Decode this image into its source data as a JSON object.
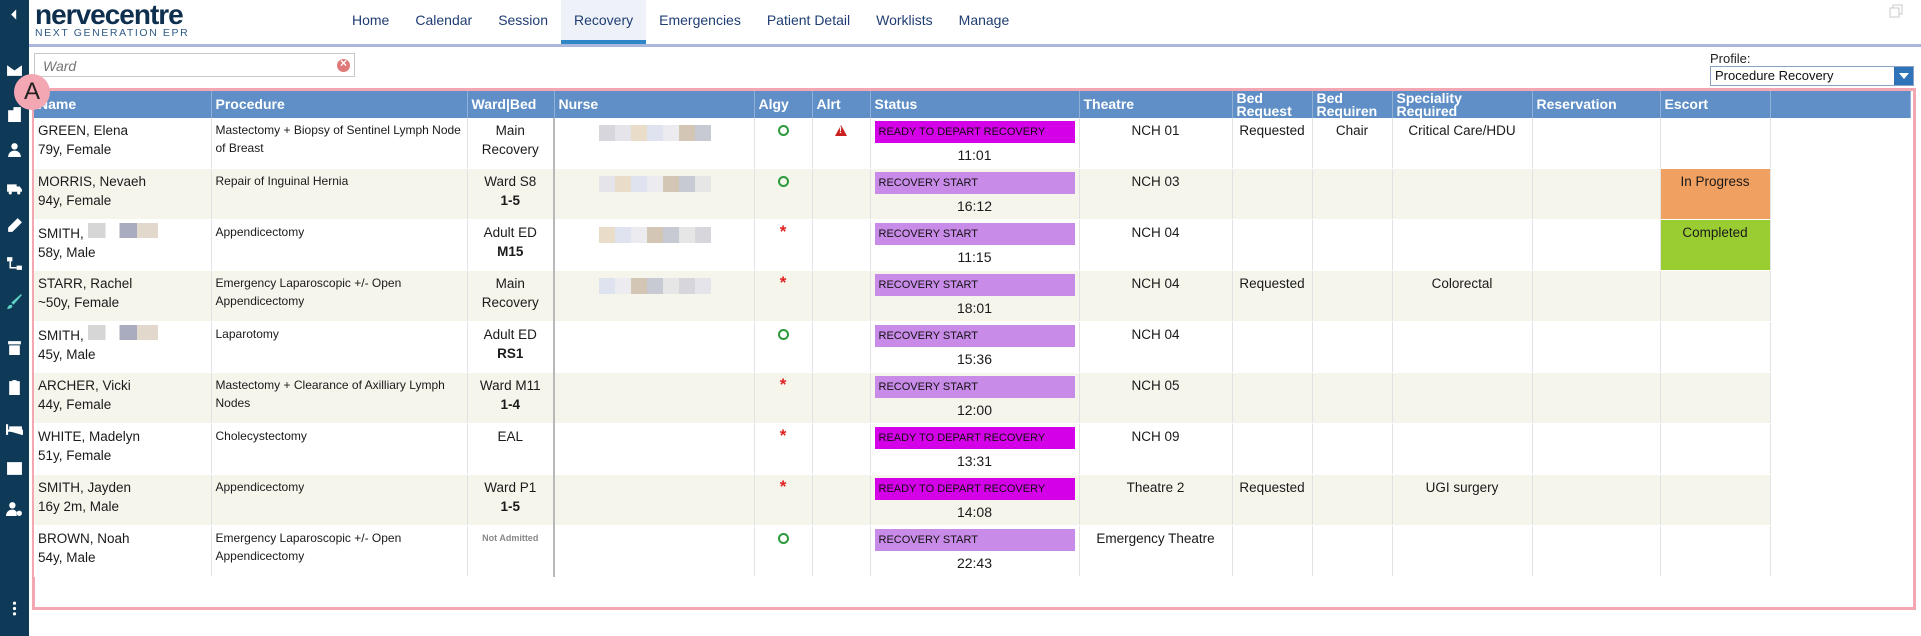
{
  "app": {
    "logo_name": "nervecentre",
    "logo_sub": "NEXT GENERATION EPR"
  },
  "nav": {
    "tabs": [
      {
        "label": "Home",
        "active": false
      },
      {
        "label": "Calendar",
        "active": false
      },
      {
        "label": "Session",
        "active": false
      },
      {
        "label": "Recovery",
        "active": true
      },
      {
        "label": "Emergencies",
        "active": false
      },
      {
        "label": "Patient Detail",
        "active": false
      },
      {
        "label": "Worklists",
        "active": false
      },
      {
        "label": "Manage",
        "active": false
      }
    ]
  },
  "search": {
    "placeholder": "Ward"
  },
  "profile": {
    "label": "Profile:",
    "value": "Procedure Recovery"
  },
  "annotation_badge": "A",
  "columns": [
    "Name",
    "Procedure",
    "Ward|Bed",
    "Nurse",
    "Algy",
    "Alrt",
    "Status",
    "Theatre",
    "Bed Request",
    "Bed Requirement",
    "Speciality Required",
    "Reservation",
    "Escort"
  ],
  "column_headers": {
    "name": "Name",
    "procedure": "Procedure",
    "ward_bed": "Ward|Bed",
    "nurse": "Nurse",
    "algy": "Algy",
    "alrt": "Alrt",
    "status": "Status",
    "theatre": "Theatre",
    "bed_request_1": "Bed",
    "bed_request_2": "Request",
    "bed_req_1": "Bed",
    "bed_req_2": "Requiren",
    "speciality_1": "Speciality",
    "speciality_2": "Required",
    "reservation": "Reservation",
    "escort": "Escort"
  },
  "rows": [
    {
      "name": "GREEN, Elena",
      "age_sex": "79y, Female",
      "procedure": "Mastectomy + Biopsy of Sentinel Lymph Node of Breast",
      "ward": "Main Recovery",
      "bed": "",
      "algy": "circle",
      "alert": "warning",
      "status": "READY TO DEPART RECOVERY",
      "status_kind": "ready",
      "time": "11:01",
      "theatre": "NCH 01",
      "bed_request": "Requested",
      "bed_requirement": "Chair",
      "speciality": "Critical Care/HDU",
      "reservation": "",
      "escort": ""
    },
    {
      "name": "MORRIS, Nevaeh",
      "age_sex": "94y, Female",
      "procedure": "Repair of Inguinal Hernia",
      "ward": "Ward S8",
      "bed": "1-5",
      "algy": "circle",
      "alert": "",
      "status": "RECOVERY START",
      "status_kind": "start",
      "time": "16:12",
      "theatre": "NCH 03",
      "bed_request": "",
      "bed_requirement": "",
      "speciality": "",
      "reservation": "",
      "escort": "In Progress"
    },
    {
      "name": "SMITH,",
      "age_sex": "58y, Male",
      "procedure": "Appendicectomy",
      "ward": "Adult ED",
      "bed": "M15",
      "algy": "star",
      "alert": "",
      "status": "RECOVERY START",
      "status_kind": "start",
      "time": "11:15",
      "theatre": "NCH 04",
      "bed_request": "",
      "bed_requirement": "",
      "speciality": "",
      "reservation": "",
      "escort": "Completed"
    },
    {
      "name": "STARR, Rachel",
      "age_sex": "~50y, Female",
      "procedure": "Emergency Laparoscopic +/- Open Appendicectomy",
      "ward": "Main Recovery",
      "bed": "",
      "algy": "star",
      "alert": "",
      "status": "RECOVERY START",
      "status_kind": "start",
      "time": "18:01",
      "theatre": "NCH 04",
      "bed_request": "Requested",
      "bed_requirement": "",
      "speciality": "Colorectal",
      "reservation": "",
      "escort": ""
    },
    {
      "name": "SMITH,",
      "age_sex": "45y, Male",
      "procedure": "Laparotomy",
      "ward": "Adult ED",
      "bed": "RS1",
      "algy": "circle",
      "alert": "",
      "status": "RECOVERY START",
      "status_kind": "start",
      "time": "15:36",
      "theatre": "NCH 04",
      "bed_request": "",
      "bed_requirement": "",
      "speciality": "",
      "reservation": "",
      "escort": ""
    },
    {
      "name": "ARCHER, Vicki",
      "age_sex": "44y, Female",
      "procedure": "Mastectomy + Clearance of Axilliary Lymph Nodes",
      "ward": "Ward M11",
      "bed": "1-4",
      "algy": "star",
      "alert": "",
      "status": "RECOVERY START",
      "status_kind": "start",
      "time": "12:00",
      "theatre": "NCH 05",
      "bed_request": "",
      "bed_requirement": "",
      "speciality": "",
      "reservation": "",
      "escort": ""
    },
    {
      "name": "WHITE, Madelyn",
      "age_sex": "51y, Female",
      "procedure": "Cholecystectomy",
      "ward": "EAL",
      "bed": "",
      "algy": "star",
      "alert": "",
      "status": "READY TO DEPART RECOVERY",
      "status_kind": "ready",
      "time": "13:31",
      "theatre": "NCH 09",
      "bed_request": "",
      "bed_requirement": "",
      "speciality": "",
      "reservation": "",
      "escort": ""
    },
    {
      "name": "SMITH, Jayden",
      "age_sex": "16y 2m, Male",
      "procedure": "Appendicectomy",
      "ward": "Ward P1",
      "bed": "1-5",
      "algy": "star",
      "alert": "",
      "status": "READY TO DEPART RECOVERY",
      "status_kind": "ready",
      "time": "14:08",
      "theatre": "Theatre 2",
      "bed_request": "Requested",
      "bed_requirement": "",
      "speciality": "UGI surgery",
      "reservation": "",
      "escort": ""
    },
    {
      "name": "BROWN, Noah",
      "age_sex": "54y, Male",
      "procedure": "Emergency Laparoscopic +/- Open Appendicectomy",
      "ward": "Not Admitted",
      "bed": "",
      "algy": "circle",
      "alert": "",
      "status": "RECOVERY START",
      "status_kind": "start",
      "time": "22:43",
      "theatre": "Emergency Theatre",
      "bed_request": "",
      "bed_requirement": "",
      "speciality": "",
      "reservation": "",
      "escort": ""
    }
  ],
  "colors": {
    "rail": "#0f3a57",
    "header": "#5f8fc6",
    "ready": "#d400e8",
    "start": "#c98be8",
    "escort_in_progress": "#f0a060",
    "escort_completed": "#9acd32",
    "frame": "#f3a7b3"
  }
}
